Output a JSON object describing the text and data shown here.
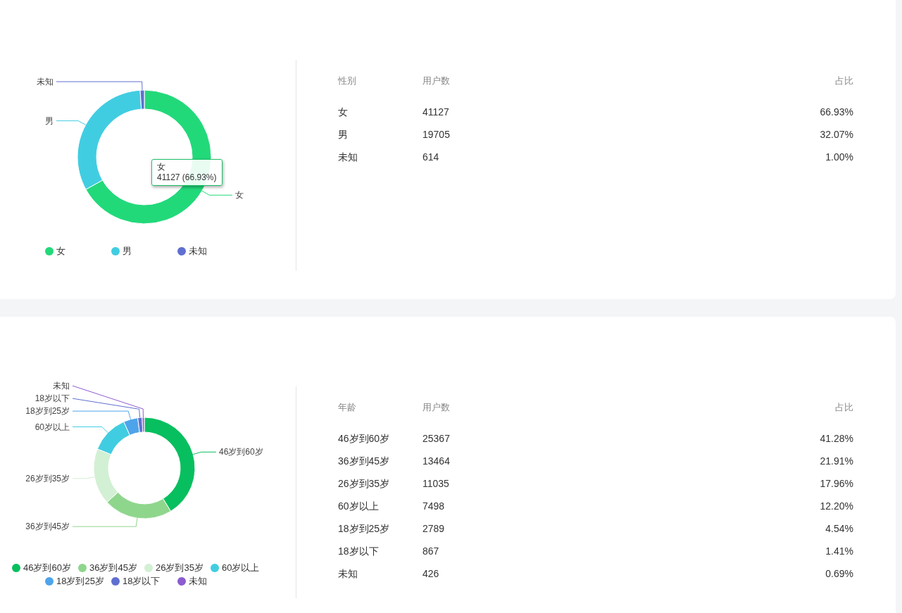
{
  "chart_data": [
    {
      "type": "donut",
      "xlabel": "性别",
      "categories": [
        "女",
        "男",
        "未知"
      ],
      "values": [
        66.93,
        32.07,
        1.0
      ],
      "colors": [
        "#22d97a",
        "#41cde1",
        "#5f6fd0"
      ],
      "legend": "bottom",
      "annotations": [
        "用户数",
        "占比",
        "41127",
        "66.93%",
        "19705",
        "32.07%",
        "614",
        "1.00%",
        "女\n41127 (66.93%)"
      ]
    },
    {
      "type": "donut",
      "xlabel": "年龄",
      "categories": [
        "46岁到60岁",
        "36岁到45岁",
        "26岁到35岁",
        "60岁以上",
        "18岁到25岁",
        "18岁以下",
        "未知"
      ],
      "values": [
        41.28,
        21.91,
        17.96,
        12.2,
        4.54,
        1.41,
        0.69
      ],
      "colors": [
        "#07bf5f",
        "#8fd68d",
        "#d2f0d3",
        "#41cde1",
        "#4ea4ea",
        "#5f6fd0",
        "#8c5cd0"
      ],
      "legend": "bottom",
      "annotations": [
        "用户数",
        "占比",
        "25367",
        "41.28%",
        "13464",
        "21.91%",
        "11035",
        "17.96%",
        "7498",
        "12.20%",
        "2789",
        "4.54%",
        "867",
        "1.41%",
        "426",
        "0.69%"
      ]
    }
  ]
}
